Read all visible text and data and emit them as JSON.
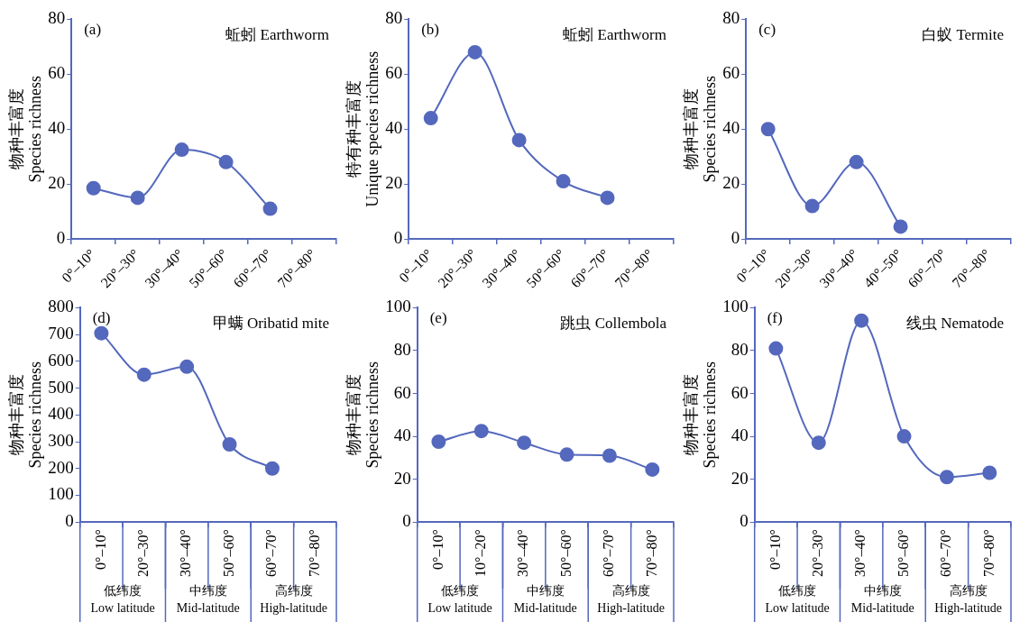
{
  "chart_data": [
    {
      "type": "line",
      "title": "蚯蚓 Earthworm",
      "ylabel": "物种丰富度\nSpecies richness",
      "annotations": [
        "(a)"
      ],
      "categories": [
        "0°–10°",
        "20°–30°",
        "30°–40°",
        "50°–60°",
        "60°–70°",
        "70°–80°"
      ],
      "values": [
        18.5,
        15,
        32.5,
        28,
        11,
        null
      ],
      "color": "#5468bd",
      "ylim": [
        0,
        80
      ],
      "yticks": [
        0,
        20,
        40,
        60,
        80
      ],
      "grid": false,
      "marker": "circle",
      "line_style": "solid"
    },
    {
      "type": "line",
      "title": "蚯蚓 Earthworm",
      "ylabel": "特有种丰富度\nUnique species richness",
      "annotations": [
        "(b)"
      ],
      "categories": [
        "0°–10°",
        "20°–30°",
        "30°–40°",
        "50°–60°",
        "60°–70°",
        "70°–80°"
      ],
      "values": [
        44,
        68,
        36,
        21,
        15,
        null
      ],
      "color": "#5468bd",
      "ylim": [
        0,
        80
      ],
      "yticks": [
        0,
        20,
        40,
        60,
        80
      ],
      "grid": false,
      "marker": "circle",
      "line_style": "solid"
    },
    {
      "type": "line",
      "title": "白蚁 Termite",
      "ylabel": "物种丰富度\nSpecies richness",
      "annotations": [
        "(c)"
      ],
      "categories": [
        "0°–10°",
        "20°–30°",
        "30°–40°",
        "40°–50°",
        "60°–70°",
        "70°–80°"
      ],
      "values": [
        40,
        12,
        28,
        4.5,
        null,
        null
      ],
      "color": "#5468bd",
      "ylim": [
        0,
        80
      ],
      "yticks": [
        0,
        20,
        40,
        60,
        80
      ],
      "grid": false,
      "marker": "circle",
      "line_style": "solid"
    },
    {
      "type": "line",
      "title": "甲螨 Oribatid mite",
      "ylabel": "物种丰富度\nSpecies richness",
      "annotations": [
        "(d)",
        "低纬度\nLow latitude",
        "中纬度\nMid-latitude",
        "高纬度\nHigh-latitude"
      ],
      "categories": [
        "0°–10°",
        "20°–30°",
        "30°–40°",
        "50°–60°",
        "60°–70°",
        "70°–80°"
      ],
      "values": [
        705,
        550,
        580,
        290,
        200,
        null
      ],
      "color": "#5468bd",
      "ylim": [
        0,
        800
      ],
      "yticks": [
        0,
        100,
        200,
        300,
        400,
        500,
        600,
        700,
        800
      ],
      "grid": false,
      "marker": "circle",
      "line_style": "solid"
    },
    {
      "type": "line",
      "title": "跳虫 Collembola",
      "ylabel": "物种丰富度\nSpecies richness",
      "annotations": [
        "(e)",
        "低纬度\nLow latitude",
        "中纬度\nMid-latitude",
        "高纬度\nHigh-latitude"
      ],
      "categories": [
        "0°–10°",
        "10°–20°",
        "30°–40°",
        "50°–60°",
        "60°–70°",
        "70°–80°"
      ],
      "values": [
        37.5,
        42.5,
        37,
        31.5,
        31,
        24.5
      ],
      "color": "#5468bd",
      "ylim": [
        0,
        100
      ],
      "yticks": [
        0,
        20,
        40,
        60,
        80,
        100
      ],
      "grid": false,
      "marker": "circle",
      "line_style": "solid"
    },
    {
      "type": "line",
      "title": "线虫 Nematode",
      "ylabel": "物种丰富度\nSpecies richness",
      "annotations": [
        "(f)",
        "低纬度\nLow latitude",
        "中纬度\nMid-latitude",
        "高纬度\nHigh-latitude"
      ],
      "categories": [
        "0°–10°",
        "20°–30°",
        "30°–40°",
        "50°–60°",
        "60°–70°",
        "70°–80°"
      ],
      "values": [
        81,
        37,
        94,
        40,
        21,
        23
      ],
      "color": "#5468bd",
      "ylim": [
        0,
        100
      ],
      "yticks": [
        0,
        20,
        40,
        60,
        80,
        100
      ],
      "grid": false,
      "marker": "circle",
      "line_style": "solid"
    }
  ]
}
